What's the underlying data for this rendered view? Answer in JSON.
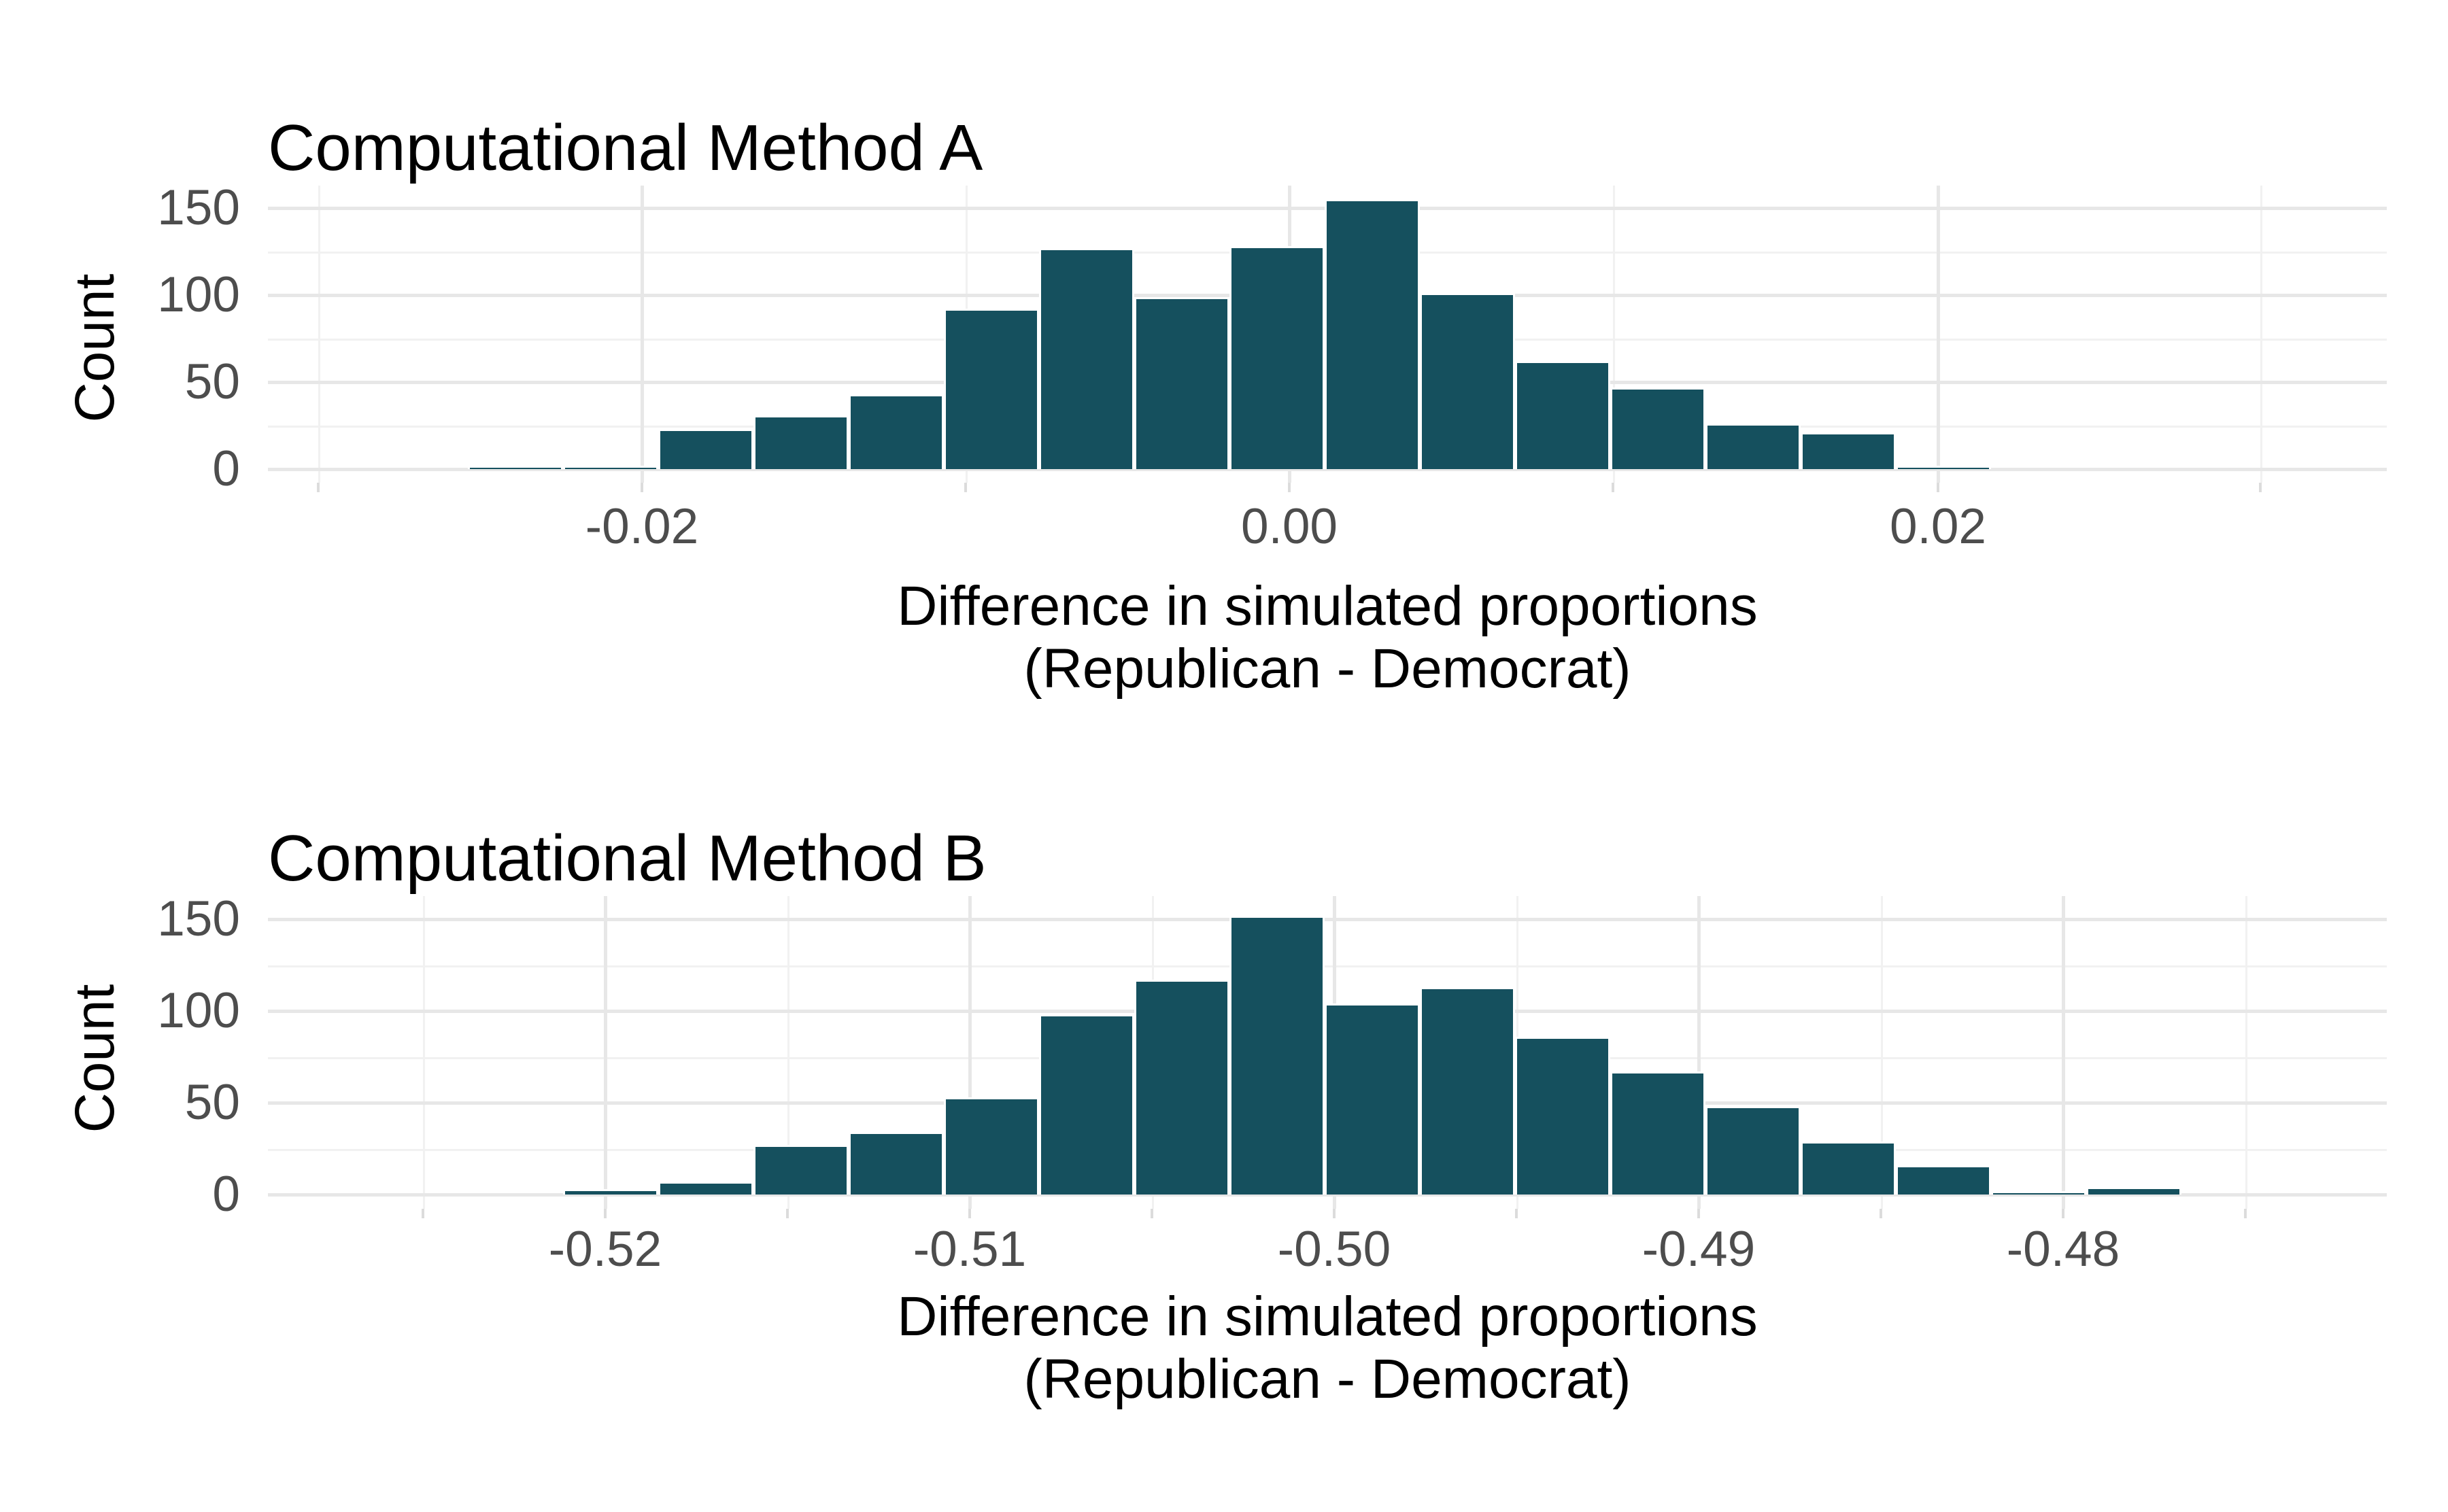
{
  "figure": {
    "background": "#ffffff",
    "n_charts": 2
  },
  "colors": {
    "bar_fill": "#15505e",
    "bar_border": "#ffffff",
    "grid_major": "#e7e7e7",
    "grid_minor": "#f1f1f1",
    "tick_label_text": "#4d4d4d",
    "title_text": "#000000"
  },
  "chart_data": [
    {
      "type": "bar",
      "subtype": "histogram",
      "title": "Computational Method A",
      "ylabel": "Count",
      "xlabel": "Difference in simulated proportions (Republican - Democrat)",
      "xlabel_line1": "Difference in simulated proportions",
      "xlabel_line2": "(Republican - Democrat)",
      "bin_start": -0.0254,
      "bin_width": 0.0029,
      "counts": [
        2,
        2,
        23,
        31,
        43,
        92,
        127,
        99,
        128,
        155,
        101,
        62,
        47,
        26,
        21,
        2
      ],
      "x_tick_labels": [
        "-0.02",
        "0.00",
        "0.02"
      ],
      "x_tick_values": [
        -0.02,
        0.0,
        0.02
      ],
      "x_minor_tick_values": [
        -0.03,
        -0.01,
        0.01,
        0.03
      ],
      "y_tick_labels": [
        "0",
        "50",
        "100",
        "150"
      ],
      "y_tick_values": [
        0,
        50,
        100,
        150
      ],
      "y_minor_tick_values": [
        25,
        75,
        125
      ],
      "xlim": [
        -0.0316,
        0.0339
      ],
      "ylim": [
        0,
        163
      ],
      "grid": "major+minor",
      "legend": "none"
    },
    {
      "type": "bar",
      "subtype": "histogram",
      "title": "Computational Method B",
      "ylabel": "Count",
      "xlabel": "Difference in simulated proportions (Republican - Democrat)",
      "xlabel_line1": "Difference in simulated proportions",
      "xlabel_line2": "(Republican - Democrat)",
      "bin_start": -0.5212,
      "bin_width": 0.0026,
      "counts": [
        3,
        7,
        27,
        34,
        53,
        98,
        117,
        152,
        104,
        113,
        86,
        67,
        48,
        29,
        16,
        2,
        4
      ],
      "x_tick_labels": [
        "-0.52",
        "-0.51",
        "-0.50",
        "-0.49",
        "-0.48"
      ],
      "x_tick_values": [
        -0.52,
        -0.51,
        -0.5,
        -0.49,
        -0.48
      ],
      "x_minor_tick_values": [
        -0.525,
        -0.515,
        -0.505,
        -0.495,
        -0.485,
        -0.475
      ],
      "y_tick_labels": [
        "0",
        "50",
        "100",
        "150"
      ],
      "y_tick_values": [
        0,
        50,
        100,
        150
      ],
      "y_minor_tick_values": [
        25,
        75,
        125
      ],
      "xlim": [
        -0.5293,
        -0.4711
      ],
      "ylim": [
        0,
        163
      ],
      "grid": "major+minor",
      "legend": "none"
    }
  ]
}
